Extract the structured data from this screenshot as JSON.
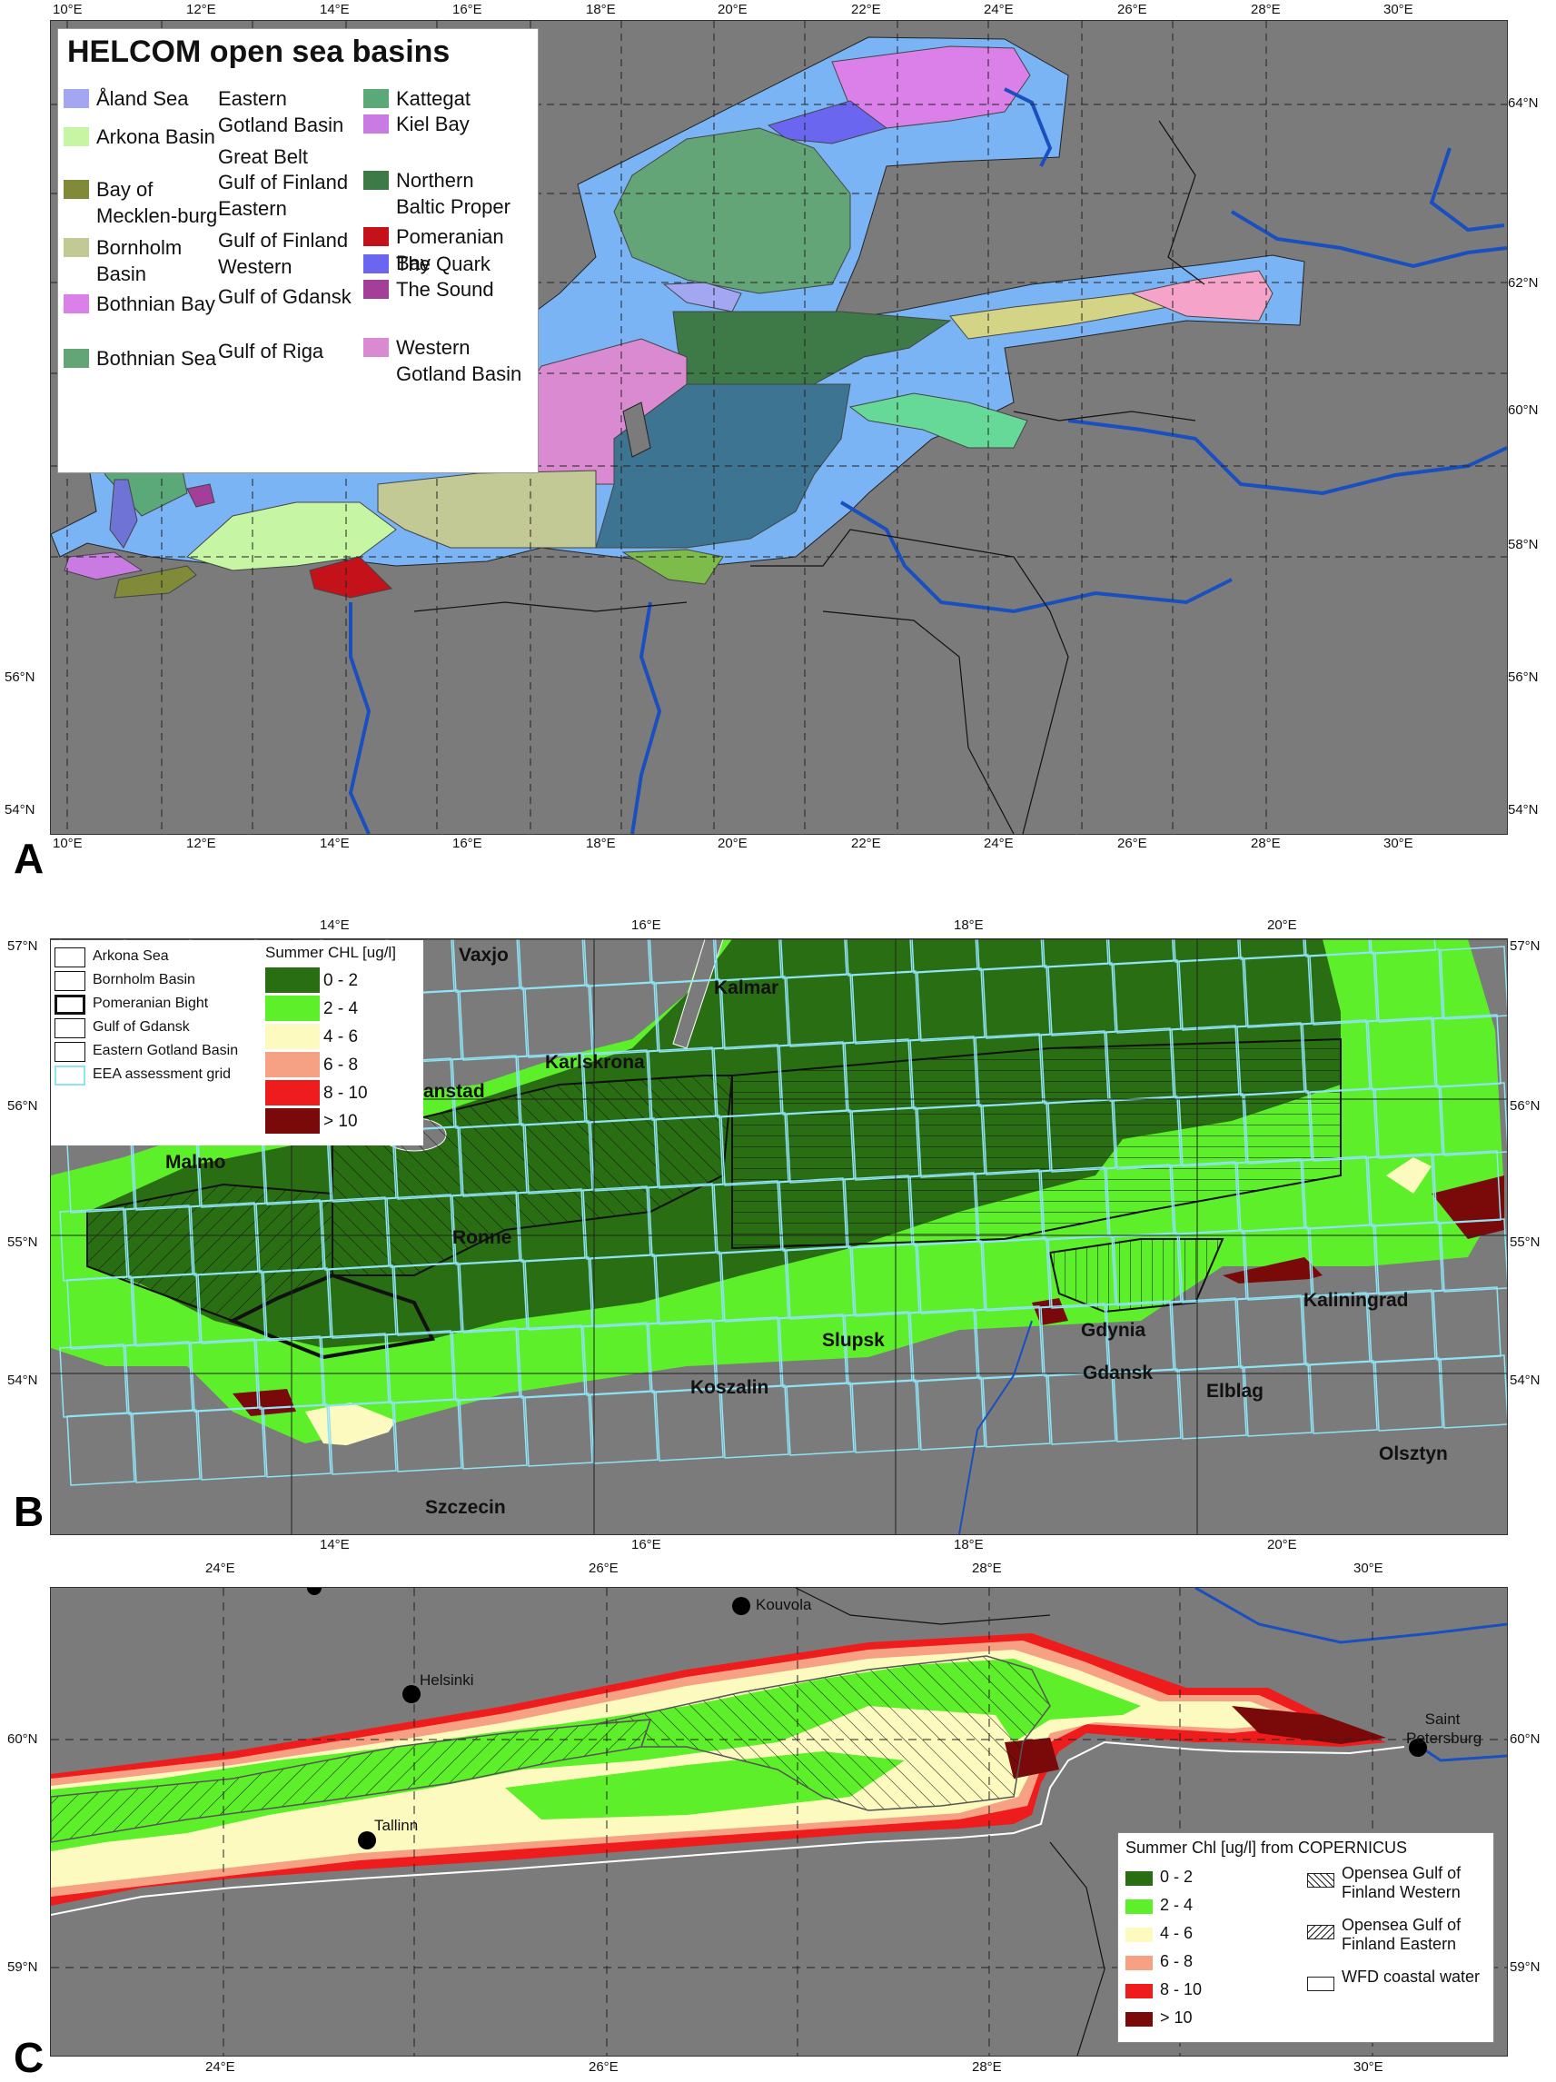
{
  "panelA": {
    "label": "A",
    "title": "HELCOM open sea basins",
    "x_ticks": [
      "10°E",
      "12°E",
      "14°E",
      "16°E",
      "18°E",
      "20°E",
      "22°E",
      "24°E",
      "26°E",
      "28°E",
      "30°E"
    ],
    "y_ticks": [
      "64°N",
      "62°N",
      "60°N",
      "58°N",
      "56°N",
      "54°N"
    ],
    "legend": [
      {
        "label": "Åland Sea",
        "color": "#a3a7f2"
      },
      {
        "label": "Arkona Basin",
        "color": "#c6f5a3"
      },
      {
        "label": "Bay of Mecklen-burg",
        "color": "#808a38"
      },
      {
        "label": "Bornholm Basin",
        "color": "#c2c994"
      },
      {
        "label": "Bothnian Bay",
        "color": "#db80e8"
      },
      {
        "label": "Bothnian Sea",
        "color": "#64a578"
      },
      {
        "label": "Eastern Gotland Basin",
        "color": "#3c7491"
      },
      {
        "label": "Great Belt",
        "color": "#6f73d6"
      },
      {
        "label": "Gulf of Finland Eastern",
        "color": "#f5a3c8"
      },
      {
        "label": "Gulf of Finland Western",
        "color": "#d4d486"
      },
      {
        "label": "Gulf of Gdansk",
        "color": "#7dbb4a"
      },
      {
        "label": "Gulf of Riga",
        "color": "#66d998"
      },
      {
        "label": "Kattegat",
        "color": "#5ba878"
      },
      {
        "label": "Kiel Bay",
        "color": "#c97be3"
      },
      {
        "label": "Northern Baltic Proper",
        "color": "#3d7a48"
      },
      {
        "label": "Pomeranian Bay",
        "color": "#c4121a"
      },
      {
        "label": "The Quark",
        "color": "#6b66f0"
      },
      {
        "label": "The Sound",
        "color": "#a33f99"
      },
      {
        "label": "Western Gotland Basin",
        "color": "#d98ad0"
      }
    ]
  },
  "panelB": {
    "label": "B",
    "x_ticks": [
      "14°E",
      "16°E",
      "18°E",
      "20°E"
    ],
    "y_ticks": [
      "57°N",
      "56°N",
      "55°N",
      "54°N"
    ],
    "legend_basins": [
      "Arkona Sea",
      "Bornholm Basin",
      "Pomeranian Bight",
      "Gulf of Gdansk",
      "Eastern Gotland Basin",
      "EEA assessment grid"
    ],
    "legend_title": "Summer CHL [ug/l]",
    "legend_classes": [
      {
        "label": "0 - 2",
        "color": "#2a6e14"
      },
      {
        "label": "2 - 4",
        "color": "#5eef2b"
      },
      {
        "label": "4 - 6",
        "color": "#fdfac0"
      },
      {
        "label": "6 - 8",
        "color": "#f7a184"
      },
      {
        "label": "8 - 10",
        "color": "#ee1c1c"
      },
      {
        "label": "> 10",
        "color": "#7a0a0a"
      }
    ],
    "cities": [
      "Vaxjo",
      "Kalmar",
      "Karlskrona",
      "anstad",
      "Malmo",
      "Ronne",
      "Slupsk",
      "Gdynia",
      "Gdansk",
      "Koszalin",
      "Kaliningrad",
      "Elblag",
      "Olsztyn",
      "Szczecin"
    ]
  },
  "panelC": {
    "label": "C",
    "x_ticks": [
      "24°E",
      "26°E",
      "28°E",
      "30°E"
    ],
    "y_ticks": [
      "60°N",
      "59°N"
    ],
    "legend_title": "Summer Chl [ug/l] from COPERNICUS",
    "legend_classes": [
      {
        "label": "0 - 2",
        "color": "#2a6e14"
      },
      {
        "label": "2 - 4",
        "color": "#5eef2b"
      },
      {
        "label": "4 - 6",
        "color": "#fdfac0"
      },
      {
        "label": "6 - 8",
        "color": "#f7a184"
      },
      {
        "label": "8 - 10",
        "color": "#ee1c1c"
      },
      {
        "label": "> 10",
        "color": "#7a0a0a"
      }
    ],
    "legend_areas": [
      "Opensea Gulf of Finland Western",
      "Opensea Gulf of Finland Eastern",
      "WFD coastal water"
    ],
    "cities": [
      "Kouvola",
      "Helsinki",
      "Tallinn",
      "Saint Petersburg"
    ]
  }
}
